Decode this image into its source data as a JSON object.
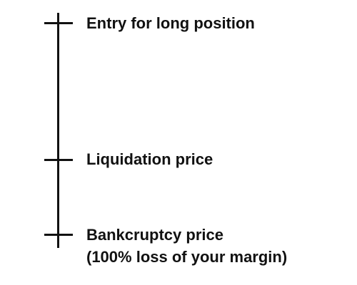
{
  "levels": {
    "entry": {
      "label": "Entry for long position"
    },
    "liquidation": {
      "label": "Liquidation price"
    },
    "bankruptcy": {
      "label": "Bankcruptcy price",
      "sublabel": "(100% loss of your margin)"
    }
  },
  "colors": {
    "line": "#111111",
    "text": "#111111",
    "background": "#ffffff"
  }
}
